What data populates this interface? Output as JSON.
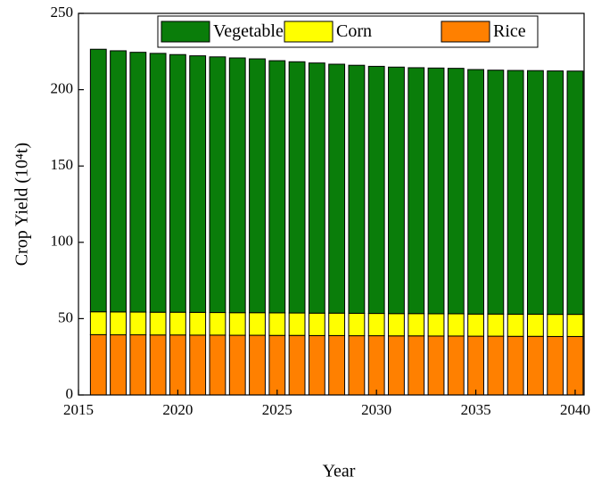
{
  "chart_data": {
    "type": "stacked_bar",
    "x_label": "Year",
    "y_label": "Crop Yield (10⁴t)",
    "x": [
      2016,
      2017,
      2018,
      2019,
      2020,
      2021,
      2022,
      2023,
      2024,
      2025,
      2026,
      2027,
      2028,
      2029,
      2030,
      2031,
      2032,
      2033,
      2034,
      2035,
      2036,
      2037,
      2038,
      2039,
      2040
    ],
    "series": [
      {
        "name": "Vegetables",
        "color": "#0a7d0a",
        "values": [
          172.0,
          171.1,
          170.2,
          169.6,
          168.8,
          168.1,
          167.5,
          166.9,
          166.3,
          165.2,
          164.6,
          163.9,
          163.1,
          162.5,
          161.9,
          161.5,
          161.1,
          161.0,
          160.8,
          160.2,
          159.8,
          159.7,
          159.6,
          159.5,
          159.4
        ]
      },
      {
        "name": "Corn",
        "color": "#ffff00",
        "values": [
          15.0,
          15.0,
          14.9,
          14.9,
          14.9,
          14.9,
          14.8,
          14.8,
          14.8,
          14.8,
          14.7,
          14.7,
          14.7,
          14.7,
          14.6,
          14.6,
          14.6,
          14.6,
          14.6,
          14.5,
          14.5,
          14.5,
          14.5,
          14.5,
          14.5
        ]
      },
      {
        "name": "Rice",
        "color": "#ff8000",
        "values": [
          39.5,
          39.4,
          39.4,
          39.3,
          39.3,
          39.2,
          39.2,
          39.1,
          39.1,
          39.0,
          39.0,
          38.9,
          38.9,
          38.8,
          38.8,
          38.7,
          38.7,
          38.6,
          38.6,
          38.5,
          38.5,
          38.4,
          38.4,
          38.3,
          38.3
        ]
      }
    ],
    "xlim": [
      2015,
      2040.45
    ],
    "xticks": [
      2015,
      2020,
      2025,
      2030,
      2035,
      2040
    ],
    "ylim": [
      0,
      250
    ],
    "yticks": [
      0,
      50,
      100,
      150,
      200,
      250
    ],
    "bar_width": 0.8,
    "legend": "top"
  }
}
